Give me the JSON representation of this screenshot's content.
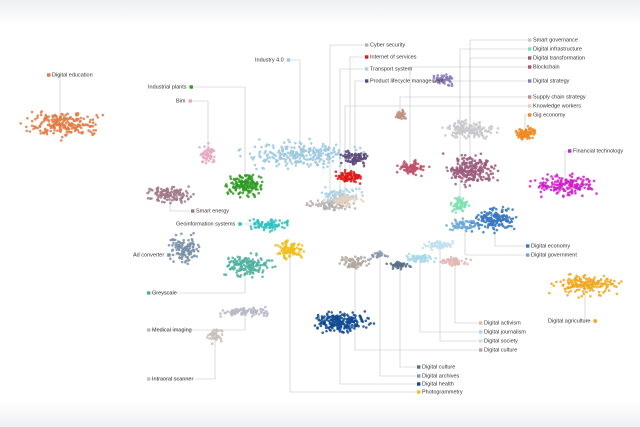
{
  "labels": [
    {
      "text": "Digital education",
      "color": "#e07b45"
    },
    {
      "text": "Industrial plants",
      "color": "#2f9a22"
    },
    {
      "text": "Bim",
      "color": "#e6a8c0"
    },
    {
      "text": "Industry 4.0",
      "color": "#9cc8e0"
    },
    {
      "text": "Cyber security",
      "color": "#b8b0b0"
    },
    {
      "text": "Internet of services",
      "color": "#e01818"
    },
    {
      "text": "Transport system",
      "color": "#a8d0e8"
    },
    {
      "text": "Product lifecycle management",
      "color": "#5a4a7a"
    },
    {
      "text": "Smart governance",
      "color": "#c8c8cc"
    },
    {
      "text": "Digital infrastructure",
      "color": "#7de0b0"
    },
    {
      "text": "Digital transformation",
      "color": "#9b5a7a"
    },
    {
      "text": "Blockchain",
      "color": "#c0506a"
    },
    {
      "text": "Digital strategy",
      "color": "#8a7ab8"
    },
    {
      "text": "Supply chain strategy",
      "color": "#c09080"
    },
    {
      "text": "Knowledge workers",
      "color": "#e8d0b8"
    },
    {
      "text": "Gig economy",
      "color": "#f08a20"
    },
    {
      "text": "Financial technology",
      "color": "#d020c8"
    },
    {
      "text": "Smart energy",
      "color": "#a07888"
    },
    {
      "text": "Geoinformation systems",
      "color": "#30c0c0"
    },
    {
      "text": "Ad converter",
      "color": "#7890a8"
    },
    {
      "text": "Greyscale",
      "color": "#50b0a0"
    },
    {
      "text": "Digital economy",
      "color": "#3a78c0"
    },
    {
      "text": "Digital government",
      "color": "#6aa8d8"
    },
    {
      "text": "Digital agriculture",
      "color": "#f0a820"
    },
    {
      "text": "Medical imaging",
      "color": "#b8b8c8"
    },
    {
      "text": "Intraoral scanner",
      "color": "#c8c0b8"
    },
    {
      "text": "Digital activism",
      "color": "#e0b8b0"
    },
    {
      "text": "Digital journalism",
      "color": "#a8d8e8"
    },
    {
      "text": "Digital society",
      "color": "#c0e0f0"
    },
    {
      "text": "Digital culture",
      "color": "#b0a8a0"
    },
    {
      "text": "Digital culture",
      "color": "#5a7088"
    },
    {
      "text": "Digital archives",
      "color": "#8898a8"
    },
    {
      "text": "Digital health",
      "color": "#104a90"
    },
    {
      "text": "Photogrammetry",
      "color": "#f0c020"
    }
  ]
}
